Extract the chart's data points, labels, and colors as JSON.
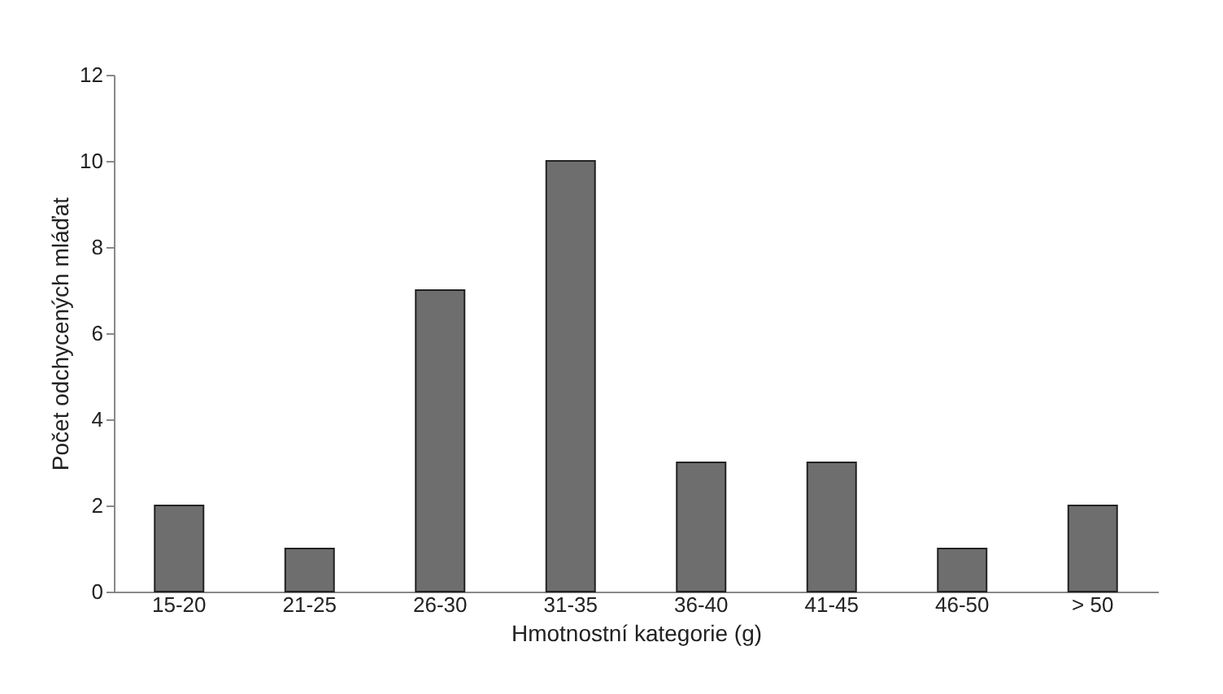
{
  "chart_data": {
    "type": "bar",
    "xlabel": "Hmotnostní kategorie (g)",
    "ylabel": "Počet odchycených mláďat",
    "categories": [
      "15-20",
      "21-25",
      "26-30",
      "31-35",
      "36-40",
      "41-45",
      "46-50",
      "> 50"
    ],
    "values": [
      2,
      1,
      7,
      10,
      3,
      3,
      1,
      2
    ],
    "color": "#6e6e6e",
    "ylim": [
      0,
      12
    ],
    "yticks": [
      0,
      2,
      4,
      6,
      8,
      10,
      12
    ],
    "grid": false
  }
}
